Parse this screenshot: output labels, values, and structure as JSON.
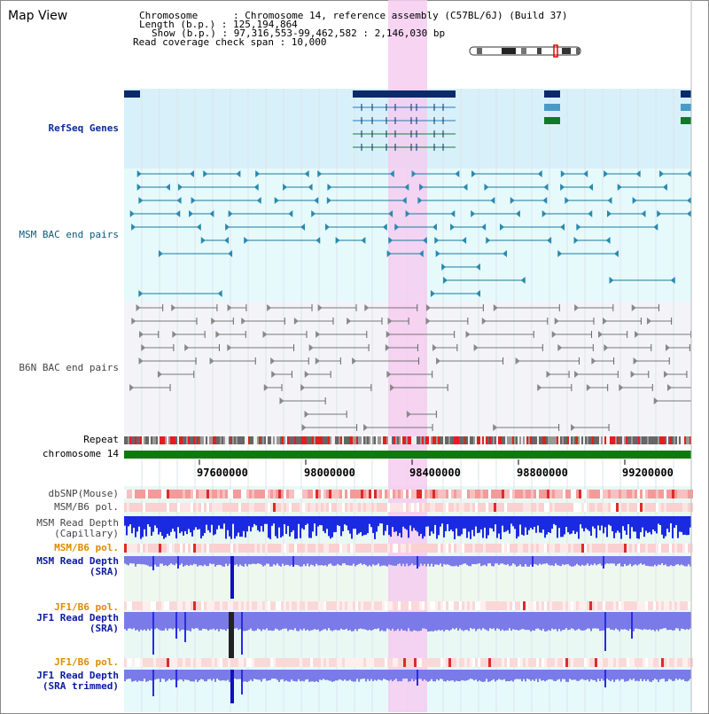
{
  "page": {
    "title": "Map View",
    "info_lines": [
      "Chromosome      : Chromosome 14, reference assembly (C57BL/6J) (Build 37)",
      "Length (b.p.) : 125,194,864",
      "Show (b.p.) : 97,316,553-99,462,582 : 2,146,030 bp",
      "Read coverage check span : 10,000"
    ]
  },
  "tracks": {
    "refseq": "RefSeq Genes",
    "msm_bac": "MSM BAC end pairs",
    "b6n_bac": "B6N BAC end pairs",
    "repeat": "Repeat",
    "chromosome": "chromosome 14",
    "dbsnp": "dbSNP(Mouse)",
    "msm_b6_pol1": "MSM/B6 pol.",
    "msm_depth_cap": "MSM Read Depth\n(Capillary)",
    "msm_b6_pol2": "MSM/B6 pol.",
    "msm_depth_sra": "MSM Read Depth\n(SRA)",
    "jf1_b6_pol1": "JF1/B6 pol.",
    "jf1_depth_sra": "JF1 Read Depth\n(SRA)",
    "jf1_b6_pol2": "JF1/B6 pol.",
    "jf1_depth_trim": "JF1 Read Depth\n(SRA trimmed)"
  },
  "axis": {
    "ticks": [
      "97600000",
      "98000000",
      "98400000",
      "98800000",
      "99200000"
    ]
  },
  "colors": {
    "highlight": "#f4cdf0",
    "refseq_bg": "#d8f0fa",
    "msm_bg": "#e6fafc",
    "b6n_bg": "#f4f4f8",
    "chrom": "#0e7a0e",
    "depth_blue": "#2a2ae8",
    "depth_light": "#7a7ae8"
  }
}
